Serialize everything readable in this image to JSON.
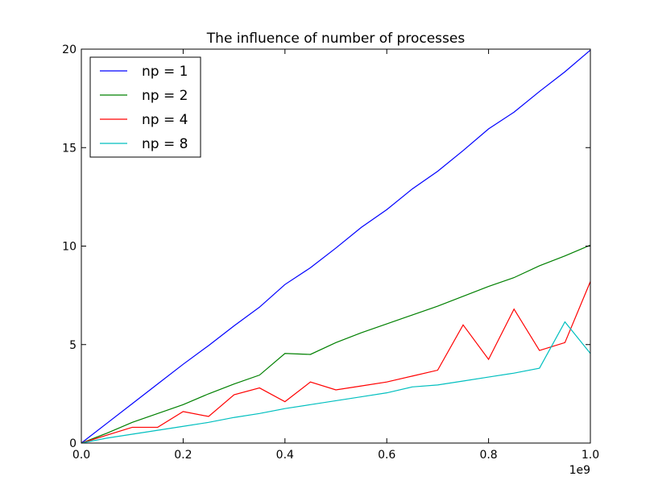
{
  "chart_data": {
    "type": "line",
    "title": "The influence of number of processes",
    "xlabel": "",
    "ylabel": "",
    "x_offset_label": "1e9",
    "xlim": [
      0.0,
      1.0
    ],
    "ylim": [
      0,
      20
    ],
    "x_ticks": [
      "0.0",
      "0.2",
      "0.4",
      "0.6",
      "0.8",
      "1.0"
    ],
    "y_ticks": [
      "0",
      "5",
      "10",
      "15",
      "20"
    ],
    "grid": false,
    "legend_position": "upper-left",
    "x": [
      0.0,
      0.05,
      0.1,
      0.15,
      0.2,
      0.25,
      0.3,
      0.35,
      0.4,
      0.45,
      0.5,
      0.55,
      0.6,
      0.65,
      0.7,
      0.75,
      0.8,
      0.85,
      0.9,
      0.95,
      1.0
    ],
    "series": [
      {
        "name": "np = 1",
        "color": "#0000ff",
        "values": [
          0.0,
          1.0,
          2.0,
          3.0,
          4.0,
          4.95,
          5.95,
          6.9,
          8.05,
          8.9,
          9.9,
          10.95,
          11.85,
          12.9,
          13.8,
          14.85,
          15.95,
          16.8,
          17.85,
          18.85,
          19.95
        ]
      },
      {
        "name": "np = 2",
        "color": "#008000",
        "values": [
          0.0,
          0.5,
          1.05,
          1.5,
          1.95,
          2.5,
          3.0,
          3.45,
          4.55,
          4.5,
          5.1,
          5.6,
          6.05,
          6.5,
          6.95,
          7.45,
          7.95,
          8.4,
          9.0,
          9.5,
          10.05
        ]
      },
      {
        "name": "np = 4",
        "color": "#ff0000",
        "values": [
          0.0,
          0.4,
          0.8,
          0.8,
          1.6,
          1.35,
          2.45,
          2.8,
          2.1,
          3.1,
          2.7,
          2.9,
          3.1,
          3.4,
          3.7,
          6.0,
          4.25,
          6.8,
          4.7,
          5.1,
          8.2
        ]
      },
      {
        "name": "np = 8",
        "color": "#00bfbf",
        "values": [
          0.0,
          0.25,
          0.45,
          0.65,
          0.85,
          1.05,
          1.3,
          1.5,
          1.75,
          1.95,
          2.15,
          2.35,
          2.55,
          2.85,
          2.95,
          3.15,
          3.35,
          3.55,
          3.8,
          6.15,
          4.55
        ]
      }
    ]
  }
}
